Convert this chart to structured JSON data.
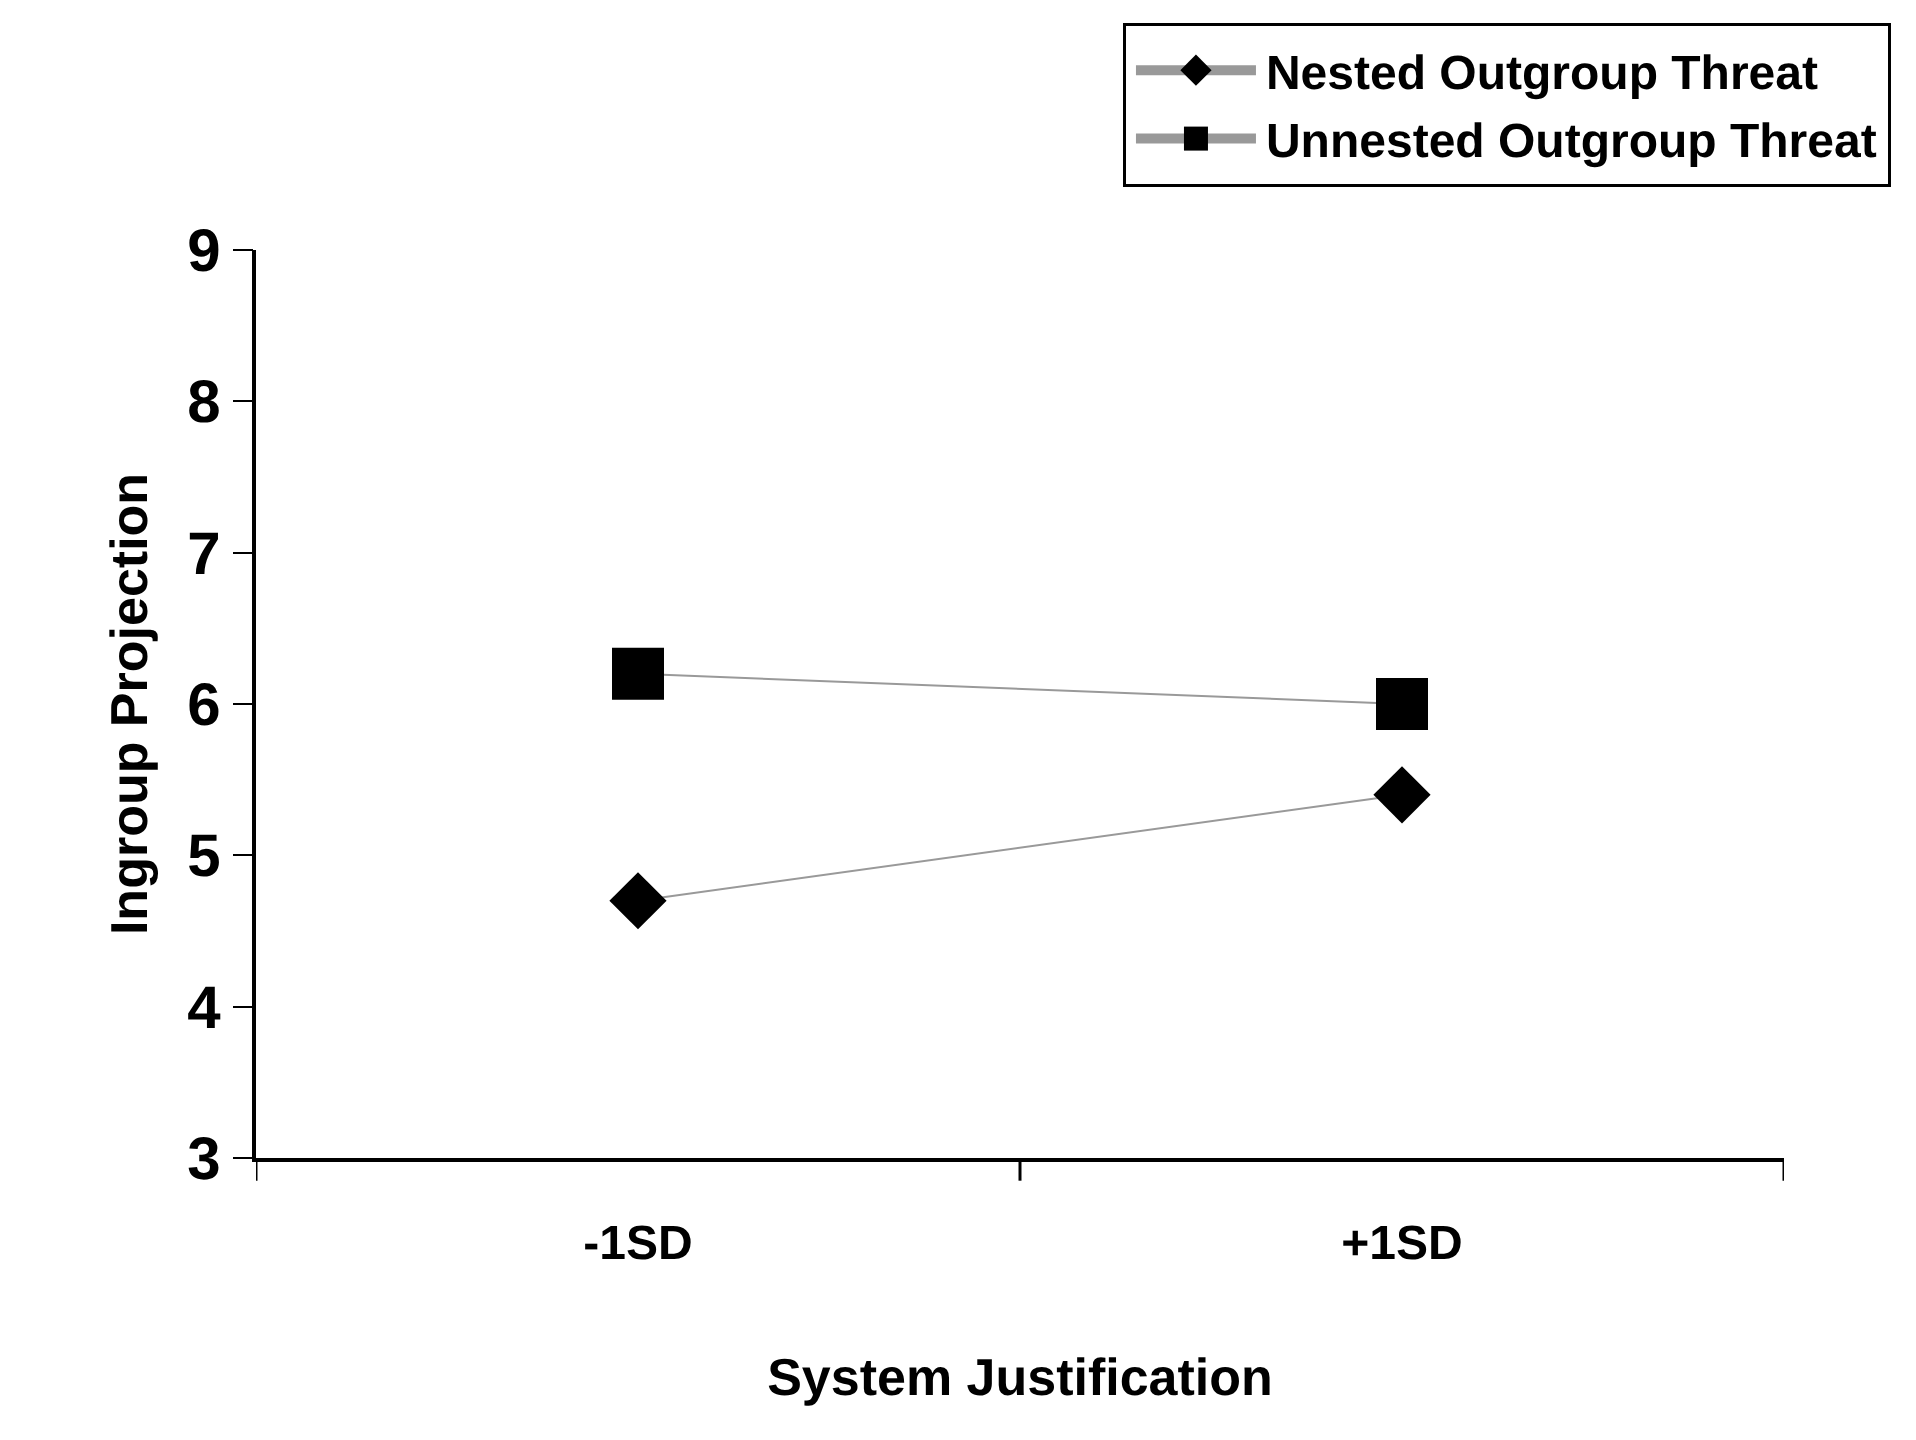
{
  "chart_data": {
    "type": "line",
    "xlabel": "System Justification",
    "ylabel": "Ingroup Projection",
    "categories": [
      "-1SD",
      "+1SD"
    ],
    "series": [
      {
        "name": "Nested Outgroup Threat",
        "color": "#000000",
        "marker": "diamond",
        "values": [
          4.7,
          5.4
        ]
      },
      {
        "name": "Unnested Outgroup Threat",
        "color": "#000000",
        "marker": "square",
        "values": [
          6.2,
          6.0
        ]
      }
    ],
    "ylim": [
      3,
      9
    ],
    "yticks": [
      3,
      4,
      5,
      6,
      7,
      8,
      9
    ],
    "legend": "top right"
  }
}
